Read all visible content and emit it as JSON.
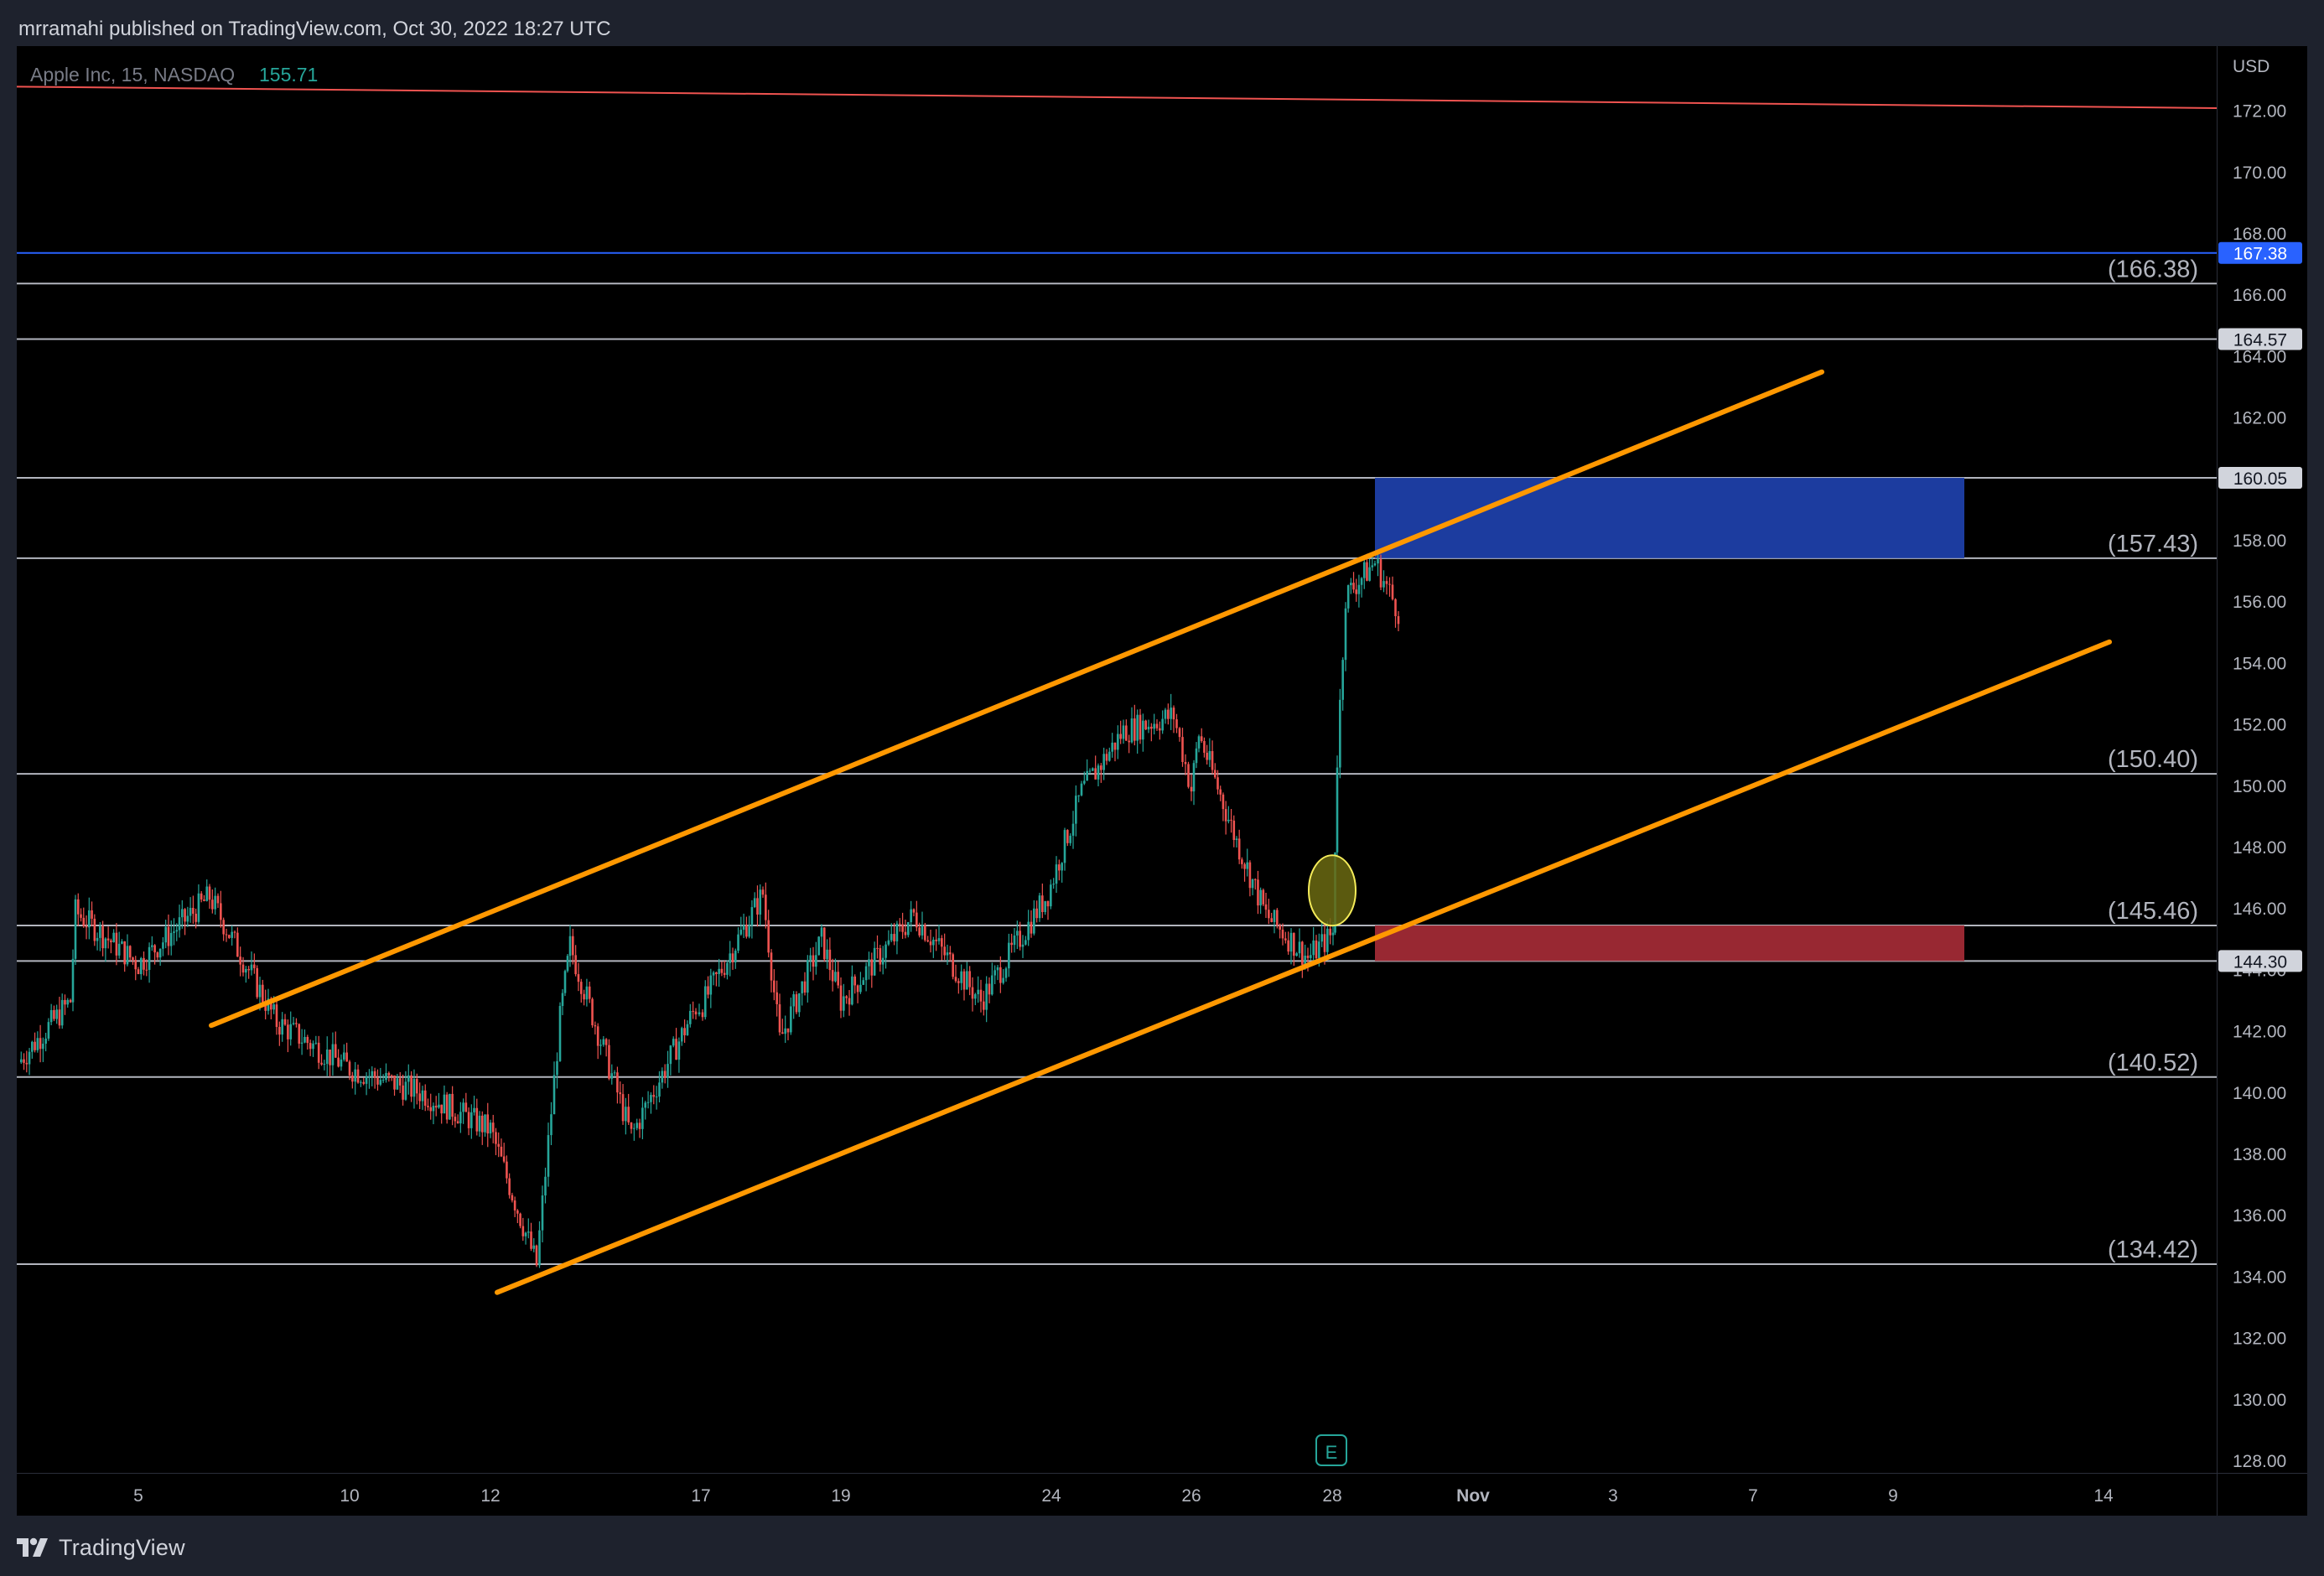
{
  "header": {
    "publish_line": "mrramahi published on TradingView.com, Oct 30, 2022 18:27 UTC"
  },
  "footer": {
    "brand": "TradingView",
    "logo_icon": "tradingview-logo-icon"
  },
  "legend": {
    "symbol": "Apple Inc, 15, NASDAQ",
    "last_price": "155.71"
  },
  "colors": {
    "background": "#000000",
    "frame": "#1e222d",
    "up_candle": "#26a69a",
    "down_candle": "#ef5350",
    "channel": "#ff9800",
    "blue_zone": "#1e3fa8",
    "red_zone": "#a02a35",
    "level_line": "#b2b5be",
    "blue_level": "#2962ff"
  },
  "earnings_icon": {
    "label": "E",
    "x": "28"
  },
  "chart_data": {
    "type": "candlestick",
    "title": "Apple Inc, 15, NASDAQ",
    "currency_label": "USD",
    "last_price": 155.71,
    "ylim": [
      127.5,
      175.5
    ],
    "y_ticks": [
      "128.00",
      "130.00",
      "132.00",
      "134.00",
      "136.00",
      "138.00",
      "140.00",
      "142.00",
      "144.00",
      "146.00",
      "148.00",
      "150.00",
      "152.00",
      "154.00",
      "156.00",
      "158.00",
      "160.00",
      "162.00",
      "164.00",
      "166.00",
      "168.00",
      "170.00",
      "172.00"
    ],
    "x_ticks": [
      "5",
      "10",
      "12",
      "17",
      "19",
      "24",
      "26",
      "28",
      "Nov",
      "3",
      "7",
      "9",
      "14"
    ],
    "price_path": [
      {
        "x": "3",
        "y": 141.0
      },
      {
        "x": "4",
        "y": 143.0
      },
      {
        "x": "5",
        "y": 145.9
      },
      {
        "x": "6",
        "y": 144.2
      },
      {
        "x": "7",
        "y": 146.4
      },
      {
        "x": "10",
        "y": 142.3
      },
      {
        "x": "11",
        "y": 140.8
      },
      {
        "x": "12",
        "y": 140.0
      },
      {
        "x": "13",
        "y": 138.8
      },
      {
        "x": "13",
        "y": 134.4
      },
      {
        "x": "14",
        "y": 142.4
      },
      {
        "x": "14",
        "y": 144.8
      },
      {
        "x": "17",
        "y": 138.6
      },
      {
        "x": "17",
        "y": 142.8
      },
      {
        "x": "18",
        "y": 142.9
      },
      {
        "x": "18",
        "y": 146.5
      },
      {
        "x": "19",
        "y": 141.7
      },
      {
        "x": "19",
        "y": 145.0
      },
      {
        "x": "20",
        "y": 143.0
      },
      {
        "x": "21",
        "y": 145.8
      },
      {
        "x": "21",
        "y": 143.0
      },
      {
        "x": "24",
        "y": 146.5
      },
      {
        "x": "24",
        "y": 149.8
      },
      {
        "x": "25",
        "y": 151.8
      },
      {
        "x": "26",
        "y": 152.3
      },
      {
        "x": "26",
        "y": 149.9
      },
      {
        "x": "26",
        "y": 151.7
      },
      {
        "x": "27",
        "y": 148.2
      },
      {
        "x": "27",
        "y": 145.8
      },
      {
        "x": "28",
        "y": 144.4
      },
      {
        "x": "28",
        "y": 145.2
      },
      {
        "x": "28",
        "y": 150.9
      },
      {
        "x": "28",
        "y": 156.2
      },
      {
        "x": "28",
        "y": 157.3
      },
      {
        "x": "28",
        "y": 155.71
      }
    ],
    "horizontal_levels": [
      {
        "value": 166.38,
        "label": "(166.38)"
      },
      {
        "value": 157.43,
        "label": "(157.43)"
      },
      {
        "value": 150.4,
        "label": "(150.40)"
      },
      {
        "value": 145.46,
        "label": "(145.46)"
      },
      {
        "value": 140.52,
        "label": "(140.52)"
      },
      {
        "value": 134.42,
        "label": "(134.42)"
      }
    ],
    "unlabeled_levels": [
      164.57,
      160.05,
      144.3
    ],
    "blue_level": 167.38,
    "price_tags": [
      {
        "value": 167.38,
        "label": "167.38",
        "style": "blue"
      },
      {
        "value": 164.57,
        "label": "164.57",
        "style": "grey"
      },
      {
        "value": 160.05,
        "label": "160.05",
        "style": "grey"
      },
      {
        "value": 144.3,
        "label": "144.30",
        "style": "grey"
      }
    ],
    "zones": [
      {
        "name": "blue-zone",
        "from_x": "28",
        "to_x": "9",
        "y_low": 157.43,
        "y_high": 160.05
      },
      {
        "name": "red-zone",
        "from_x": "28",
        "to_x": "9",
        "y_low": 144.3,
        "y_high": 145.46
      }
    ],
    "channel": {
      "upper": {
        "from": {
          "x": "7",
          "y": 142.2
        },
        "to": {
          "x": "8",
          "y": 163.5
        }
      },
      "lower": {
        "from": {
          "x": "11",
          "y": 133.5
        },
        "to": {
          "x": "14",
          "y": 154.7
        }
      }
    },
    "descending_line": {
      "from_y": 172.8,
      "to_y": 172.1
    },
    "highlight_ellipse": {
      "x": "28",
      "y": 146.6
    }
  }
}
